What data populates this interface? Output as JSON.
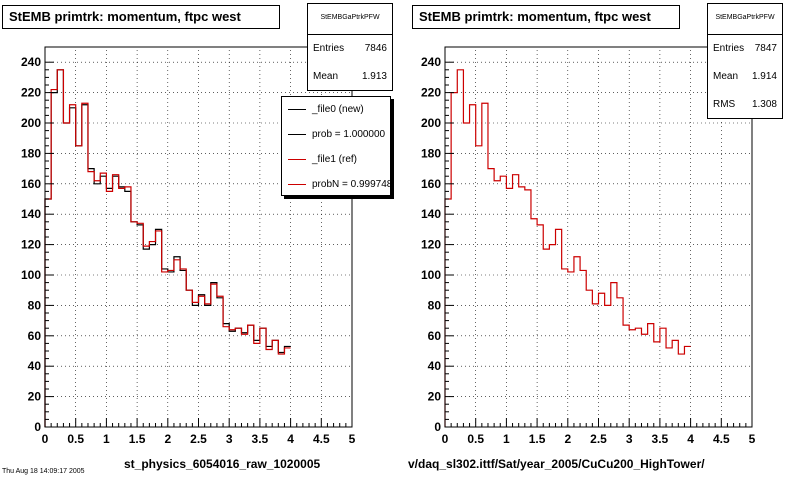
{
  "chart_data": [
    {
      "type": "histogram",
      "title": "StEMB primtrk: momentum, ftpc west",
      "xlabel": "st_physics_6054016_raw_1020005",
      "xlim": [
        0,
        5
      ],
      "ylim": [
        0,
        250
      ],
      "x_ticks": [
        0,
        0.5,
        1,
        1.5,
        2,
        2.5,
        3,
        3.5,
        4,
        4.5,
        5
      ],
      "x_tick_labels": [
        "0",
        "0.5",
        "1",
        "1.5",
        "2",
        "2.5",
        "3",
        "3.5",
        "4",
        "4.5",
        "5"
      ],
      "y_ticks": [
        0,
        20,
        40,
        60,
        80,
        100,
        120,
        140,
        160,
        180,
        200,
        220,
        240
      ],
      "y_tick_labels": [
        "0",
        "20",
        "40",
        "60",
        "80",
        "100",
        "120",
        "140",
        "160",
        "180",
        "200",
        "220",
        "240"
      ],
      "grid": true,
      "bin_width": 0.1,
      "series": [
        {
          "name": "_file0 (new)",
          "color": "#000000",
          "values": [
            150,
            220,
            235,
            200,
            210,
            185,
            212,
            170,
            160,
            165,
            157,
            165,
            158,
            155,
            135,
            133,
            117,
            120,
            130,
            104,
            102,
            112,
            103,
            90,
            80,
            87,
            80,
            95,
            85,
            68,
            63,
            65,
            62,
            67,
            57,
            65,
            53,
            57,
            49,
            53
          ]
        },
        {
          "name": "_file1 (ref)",
          "color": "#cc0000",
          "values": [
            150,
            222,
            235,
            200,
            212,
            185,
            213,
            168,
            162,
            167,
            155,
            166,
            157,
            158,
            135,
            134,
            119,
            122,
            129,
            102,
            103,
            110,
            104,
            90,
            82,
            86,
            81,
            94,
            86,
            66,
            64,
            65,
            61,
            67,
            55,
            65,
            51,
            57,
            48,
            52
          ]
        }
      ],
      "stats": {
        "name": "StEMBGaPtrkPFW",
        "entries_label": "Entries",
        "entries": "7846",
        "mean_label": "Mean",
        "mean": "1.913"
      },
      "legend": [
        {
          "label": "_file0 (new)",
          "color": "#000000"
        },
        {
          "label": "prob = 1.000000",
          "color": "#000000"
        },
        {
          "label": "_file1 (ref)",
          "color": "#cc0000"
        },
        {
          "label": "probN = 0.999748",
          "color": "#cc0000"
        }
      ]
    },
    {
      "type": "histogram",
      "title": "StEMB primtrk: momentum, ftpc west",
      "xlabel": "v/daq_sl302.ittf/Sat/year_2005/CuCu200_HighTower/",
      "xlim": [
        0,
        5
      ],
      "ylim": [
        0,
        250
      ],
      "x_ticks": [
        0,
        0.5,
        1,
        1.5,
        2,
        2.5,
        3,
        3.5,
        4,
        4.5,
        5
      ],
      "x_tick_labels": [
        "0",
        "0.5",
        "1",
        "1.5",
        "2",
        "2.5",
        "3",
        "3.5",
        "4",
        "4.5",
        "5"
      ],
      "y_ticks": [
        0,
        20,
        40,
        60,
        80,
        100,
        120,
        140,
        160,
        180,
        200,
        220,
        240
      ],
      "y_tick_labels": [
        "0",
        "20",
        "40",
        "60",
        "80",
        "100",
        "120",
        "140",
        "160",
        "180",
        "200",
        "220",
        "240"
      ],
      "grid": true,
      "bin_width": 0.1,
      "series": [
        {
          "name": "",
          "color": "#cc0000",
          "values": [
            150,
            220,
            235,
            200,
            212,
            185,
            213,
            170,
            162,
            165,
            157,
            166,
            158,
            156,
            137,
            133,
            117,
            120,
            130,
            104,
            102,
            112,
            103,
            90,
            81,
            88,
            80,
            95,
            85,
            67,
            64,
            65,
            61,
            68,
            56,
            65,
            52,
            57,
            48,
            53
          ]
        }
      ],
      "stats": {
        "name": "StEMBGaPtrkPFW",
        "entries_label": "Entries",
        "entries": "7847",
        "mean_label": "Mean",
        "mean": "1.914",
        "rms_label": "RMS",
        "rms": "1.308"
      }
    }
  ],
  "footer_text": "Thu Aug 18 14:09:17 2005"
}
